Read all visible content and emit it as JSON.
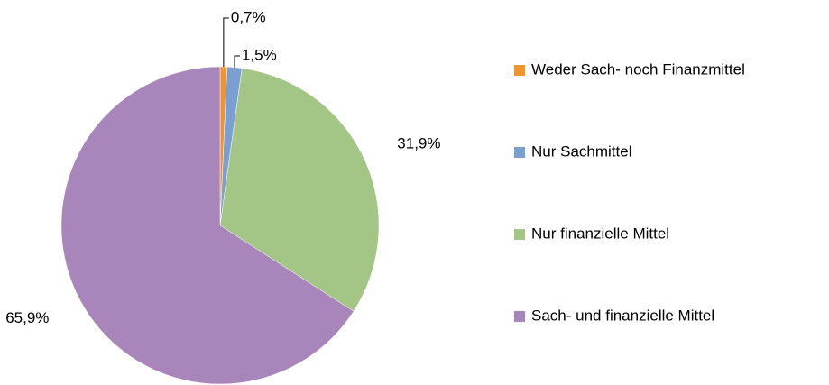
{
  "chart_data": {
    "type": "pie",
    "categories": [
      "Weder Sach- noch Finanzmittel",
      "Nur Sachmittel",
      "Nur finanzielle Mittel",
      "Sach- und finanzielle Mittel"
    ],
    "values": [
      0.7,
      1.5,
      31.9,
      65.9
    ],
    "value_labels": [
      "0,7%",
      "1,5%",
      "31,9%",
      "65,9%"
    ],
    "colors": [
      "#f0942e",
      "#7b9fd0",
      "#a3c586",
      "#a886bb"
    ],
    "legend": "right"
  }
}
